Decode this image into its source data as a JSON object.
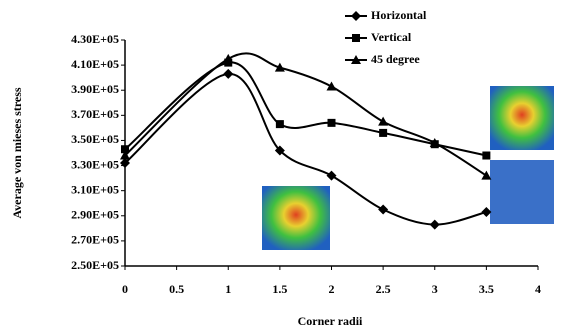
{
  "chart_data": {
    "type": "line",
    "x_label": "Corner radii",
    "y_label": "Average von mieses stress",
    "x": [
      0,
      1,
      1.5,
      2,
      2.5,
      3,
      3.5
    ],
    "series": [
      {
        "name": "Horizontal",
        "color": "#000000",
        "marker": "diamond",
        "values": [
          332000,
          403000,
          342000,
          322000,
          295000,
          283000,
          293000
        ]
      },
      {
        "name": "Vertical",
        "color": "#000000",
        "marker": "square",
        "values": [
          343000,
          412000,
          363000,
          364000,
          356000,
          347000,
          338000
        ]
      },
      {
        "name": "45 degree",
        "color": "#000000",
        "marker": "triangle",
        "values": [
          338000,
          415000,
          408000,
          393000,
          365000,
          348000,
          322000
        ]
      }
    ],
    "xlim": [
      0,
      4
    ],
    "xticks": [
      0,
      0.5,
      1,
      1.5,
      2,
      2.5,
      3,
      3.5,
      4
    ],
    "ylim": [
      250000,
      430000
    ],
    "yticks": [
      {
        "value": 250000,
        "label": "2.50E+05"
      },
      {
        "value": 270000,
        "label": "2.70E+05"
      },
      {
        "value": 290000,
        "label": "2.90E+05"
      },
      {
        "value": 310000,
        "label": "3.10E+05"
      },
      {
        "value": 330000,
        "label": "3.30E+05"
      },
      {
        "value": 350000,
        "label": "3.50E+05"
      },
      {
        "value": 370000,
        "label": "3.70E+05"
      },
      {
        "value": 390000,
        "label": "3.90E+05"
      },
      {
        "value": 410000,
        "label": "4.10E+05"
      },
      {
        "value": 430000,
        "label": "4.30E+05"
      }
    ],
    "grid": false,
    "legend": "top-right"
  }
}
